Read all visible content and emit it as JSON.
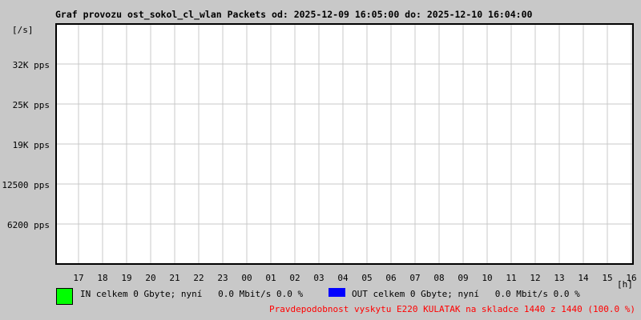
{
  "chart_data": {
    "type": "line",
    "title": "Graf provozu ost_sokol_cl_wlan Packets od: 2025-12-09 16:05:00 do: 2025-12-10 16:04:00",
    "ylabel": "[/s]",
    "xlabel": "[h]",
    "x_ticks": [
      "17",
      "18",
      "19",
      "20",
      "21",
      "22",
      "23",
      "00",
      "01",
      "02",
      "03",
      "04",
      "05",
      "06",
      "07",
      "08",
      "09",
      "10",
      "11",
      "12",
      "13",
      "14",
      "15",
      "16"
    ],
    "y_ticks": [
      "6200 pps",
      "12500 pps",
      "19K pps",
      "25K pps",
      "32K pps"
    ],
    "grid": true,
    "series": [
      {
        "name": "IN",
        "color": "#00ff00",
        "values": []
      },
      {
        "name": "OUT",
        "color": "#0000ff",
        "values": []
      }
    ]
  },
  "legend": {
    "in_text": "IN celkem 0 Gbyte; nyní   0.0 Mbit/s 0.0 %",
    "out_text": "OUT celkem 0 Gbyte; nyní   0.0 Mbit/s 0.0 %",
    "in_color": "#00ff00",
    "out_color": "#0000ff"
  },
  "footer": "Pravdepodobnost vyskytu E220 KULATAK na skladce 1440 z 1440 (100.0 %)"
}
